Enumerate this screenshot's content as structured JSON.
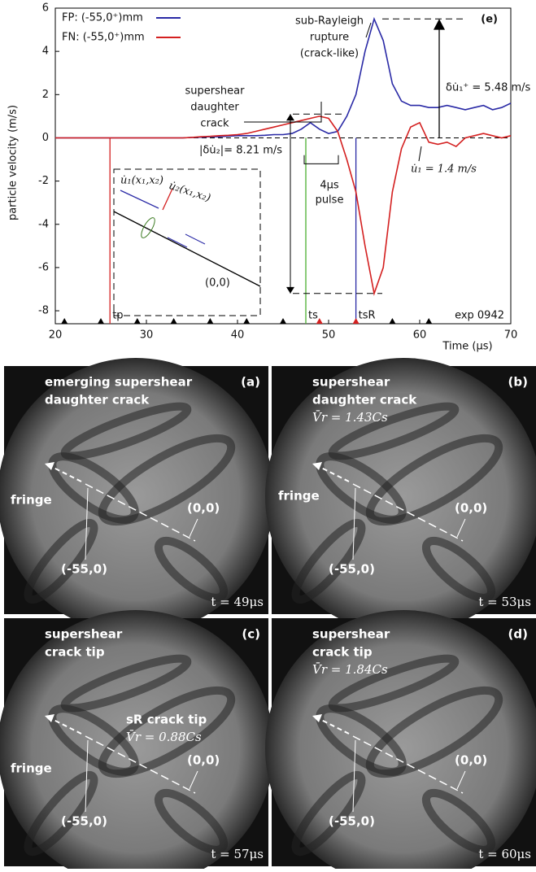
{
  "chart_data": {
    "type": "line",
    "x": [
      20,
      21,
      22,
      23,
      24,
      25,
      26,
      27,
      28,
      29,
      30,
      31,
      32,
      33,
      34,
      35,
      36,
      37,
      38,
      39,
      40,
      41,
      42,
      43,
      44,
      45,
      46,
      47,
      48,
      49,
      50,
      51,
      52,
      53,
      54,
      55,
      56,
      57,
      58,
      59,
      60,
      61,
      62,
      63,
      64,
      65,
      66,
      67,
      68,
      69,
      70
    ],
    "series": [
      {
        "name": "FP: (-55,0⁺)mm",
        "color": "#2a2aa6",
        "values": [
          0,
          0,
          0,
          0,
          0,
          0,
          0,
          0,
          0,
          0,
          0,
          0,
          0,
          0,
          0,
          0.02,
          0.03,
          0.05,
          0.05,
          0.08,
          0.1,
          0.1,
          0.1,
          0.12,
          0.15,
          0.15,
          0.2,
          0.4,
          0.7,
          0.4,
          0.2,
          0.3,
          1.0,
          2.0,
          4.0,
          5.5,
          4.5,
          2.5,
          1.7,
          1.5,
          1.5,
          1.4,
          1.4,
          1.5,
          1.4,
          1.3,
          1.4,
          1.5,
          1.3,
          1.4,
          1.6
        ]
      },
      {
        "name": "FN: (-55,0⁺)mm",
        "color": "#d42020",
        "values": [
          0,
          0,
          0,
          0,
          0,
          0,
          0,
          0,
          0,
          0,
          0,
          0,
          0,
          0,
          0,
          0.02,
          0.05,
          0.07,
          0.1,
          0.12,
          0.15,
          0.2,
          0.3,
          0.4,
          0.5,
          0.6,
          0.7,
          0.8,
          0.9,
          1.0,
          0.9,
          0.3,
          -1.0,
          -2.5,
          -5.0,
          -7.2,
          -6.0,
          -2.5,
          -0.5,
          0.5,
          0.7,
          -0.2,
          -0.3,
          -0.2,
          -0.4,
          0,
          0.1,
          0.2,
          0.1,
          0,
          0.1
        ]
      }
    ],
    "xlim": [
      20,
      70
    ],
    "xticks": [
      20,
      30,
      40,
      50,
      60,
      70
    ],
    "ylim": [
      -8.6,
      6
    ],
    "yticks": [
      6,
      4,
      2,
      0,
      -2,
      -4,
      -6,
      -8
    ],
    "xlabel": "Time (μs)",
    "ylabel": "particle velocity (m/s)",
    "event_lines": [
      {
        "label": "tp",
        "x": 26,
        "color": "#d42020"
      },
      {
        "label": "ts",
        "x": 47.5,
        "color": "#4caf30"
      },
      {
        "label": "tsR",
        "x": 53,
        "color": "#2a2aa6"
      }
    ],
    "frame_times": [
      21,
      25,
      29,
      33,
      37,
      41,
      45,
      57,
      61
    ],
    "highlight_times": [
      49,
      53
    ],
    "annotations": {
      "panel": "(e)",
      "exp": "exp 0942",
      "sr": [
        "sub-Rayleigh",
        "rupture",
        "(crack-like)"
      ],
      "ss": [
        "supershear",
        "daughter",
        "crack"
      ],
      "du1": "δu̇₁⁺ = 5.48 m/s",
      "du2": "|δu̇₂|= 8.21 m/s",
      "u1": "u̇₁ = 1.4 m/s",
      "pulse": [
        "4μs",
        "pulse"
      ],
      "inset_origin": "(0,0)",
      "inset_u1": "u̇₁(x₁,x₂)",
      "inset_u2": "u̇₂(x₁,x₂)"
    }
  },
  "panels": [
    {
      "label": "(a)",
      "caption": [
        "emerging supershear",
        "daughter crack"
      ],
      "fringe": "fringe",
      "point": "(-55,0)",
      "origin": "(0,0)",
      "time": "t = 49μs"
    },
    {
      "label": "(b)",
      "caption": [
        "supershear",
        "daughter crack",
        "V̄r = 1.43Cs"
      ],
      "fringe": "fringe",
      "point": "(-55,0)",
      "origin": "(0,0)",
      "time": "t = 53μs"
    },
    {
      "label": "(c)",
      "caption": [
        "supershear",
        "crack tip",
        "sR crack tip",
        "V̄r = 0.88Cs"
      ],
      "fringe": "fringe",
      "point": "(-55,0)",
      "origin": "(0,0)",
      "time": "t = 57μs"
    },
    {
      "label": "(d)",
      "caption": [
        "supershear",
        "crack tip",
        "V̄r = 1.84Cs"
      ],
      "point": "(-55,0)",
      "origin": "(0,0)",
      "time": "t = 60μs"
    }
  ]
}
